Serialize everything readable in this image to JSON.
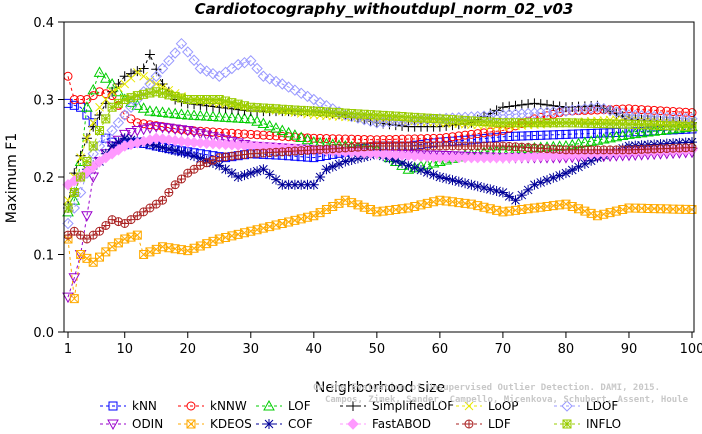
{
  "chart_data": {
    "type": "line",
    "title": "Cardiotocography_withoutdupl_norm_02_v03",
    "xlabel": "Neighborhood size",
    "ylabel": "Maximum F1",
    "xlim": [
      1,
      100
    ],
    "ylim": [
      0.0,
      0.4
    ],
    "xticks": [
      1,
      10,
      20,
      30,
      40,
      50,
      60,
      70,
      80,
      90,
      100
    ],
    "yticks": [
      0.0,
      0.1,
      0.2,
      0.3,
      0.4
    ],
    "ytick_labels": [
      "0.0",
      "0.1",
      "0.2",
      "0.3",
      "0.4"
    ],
    "grid": false,
    "legend_position": "bottom",
    "watermark": [
      "Campos, Zimek, Sander, Campello, Micenkova, Schubert, Assent, Houle",
      "On the Evaluation of Unsupervised Outlier Detection. DAMI, 2015."
    ],
    "series": [
      {
        "name": "kNN",
        "color": "#0000ff",
        "marker": "square",
        "keypoints": [
          [
            1,
            0.295
          ],
          [
            3,
            0.29
          ],
          [
            5,
            0.27
          ],
          [
            7,
            0.25
          ],
          [
            9,
            0.24
          ],
          [
            12,
            0.245
          ],
          [
            15,
            0.24
          ],
          [
            18,
            0.235
          ],
          [
            22,
            0.23
          ],
          [
            26,
            0.225
          ],
          [
            30,
            0.23
          ],
          [
            35,
            0.228
          ],
          [
            40,
            0.225
          ],
          [
            45,
            0.232
          ],
          [
            50,
            0.24
          ],
          [
            55,
            0.24
          ],
          [
            60,
            0.245
          ],
          [
            65,
            0.248
          ],
          [
            70,
            0.252
          ],
          [
            80,
            0.255
          ],
          [
            90,
            0.258
          ],
          [
            100,
            0.262
          ]
        ]
      },
      {
        "name": "kNNW",
        "color": "#ff0000",
        "marker": "circle",
        "keypoints": [
          [
            1,
            0.33
          ],
          [
            2,
            0.3
          ],
          [
            4,
            0.3
          ],
          [
            6,
            0.31
          ],
          [
            8,
            0.305
          ],
          [
            10,
            0.28
          ],
          [
            12,
            0.27
          ],
          [
            16,
            0.265
          ],
          [
            20,
            0.26
          ],
          [
            30,
            0.255
          ],
          [
            40,
            0.25
          ],
          [
            50,
            0.248
          ],
          [
            60,
            0.25
          ],
          [
            70,
            0.26
          ],
          [
            75,
            0.275
          ],
          [
            80,
            0.285
          ],
          [
            90,
            0.288
          ],
          [
            100,
            0.283
          ]
        ]
      },
      {
        "name": "LOF",
        "color": "#00cc00",
        "marker": "triangle",
        "keypoints": [
          [
            1,
            0.155
          ],
          [
            2,
            0.17
          ],
          [
            3,
            0.22
          ],
          [
            4,
            0.29
          ],
          [
            6,
            0.335
          ],
          [
            8,
            0.32
          ],
          [
            10,
            0.3
          ],
          [
            14,
            0.285
          ],
          [
            20,
            0.28
          ],
          [
            30,
            0.275
          ],
          [
            40,
            0.245
          ],
          [
            50,
            0.235
          ],
          [
            55,
            0.21
          ],
          [
            60,
            0.22
          ],
          [
            65,
            0.23
          ],
          [
            70,
            0.235
          ],
          [
            80,
            0.24
          ],
          [
            90,
            0.255
          ],
          [
            100,
            0.265
          ]
        ]
      },
      {
        "name": "SimplifiedLOF",
        "color": "#000000",
        "marker": "plus",
        "keypoints": [
          [
            1,
            0.165
          ],
          [
            2,
            0.205
          ],
          [
            4,
            0.25
          ],
          [
            6,
            0.28
          ],
          [
            8,
            0.31
          ],
          [
            10,
            0.33
          ],
          [
            13,
            0.34
          ],
          [
            14,
            0.358
          ],
          [
            16,
            0.32
          ],
          [
            18,
            0.3
          ],
          [
            20,
            0.295
          ],
          [
            25,
            0.29
          ],
          [
            30,
            0.285
          ],
          [
            40,
            0.285
          ],
          [
            45,
            0.28
          ],
          [
            50,
            0.27
          ],
          [
            55,
            0.265
          ],
          [
            60,
            0.265
          ],
          [
            65,
            0.27
          ],
          [
            70,
            0.29
          ],
          [
            75,
            0.295
          ],
          [
            80,
            0.29
          ],
          [
            85,
            0.292
          ],
          [
            90,
            0.275
          ],
          [
            100,
            0.27
          ]
        ]
      },
      {
        "name": "LoOP",
        "color": "#e8e800",
        "marker": "x",
        "keypoints": [
          [
            1,
            0.17
          ],
          [
            2,
            0.2
          ],
          [
            4,
            0.25
          ],
          [
            6,
            0.29
          ],
          [
            8,
            0.31
          ],
          [
            10,
            0.32
          ],
          [
            12,
            0.335
          ],
          [
            15,
            0.32
          ],
          [
            20,
            0.3
          ],
          [
            30,
            0.29
          ],
          [
            40,
            0.28
          ],
          [
            50,
            0.275
          ],
          [
            60,
            0.27
          ],
          [
            70,
            0.265
          ],
          [
            80,
            0.27
          ],
          [
            90,
            0.275
          ],
          [
            100,
            0.27
          ]
        ]
      },
      {
        "name": "LDOF",
        "color": "#9999ff",
        "marker": "diamond",
        "keypoints": [
          [
            1,
            0.14
          ],
          [
            3,
            0.18
          ],
          [
            5,
            0.23
          ],
          [
            8,
            0.26
          ],
          [
            12,
            0.3
          ],
          [
            15,
            0.33
          ],
          [
            18,
            0.36
          ],
          [
            19,
            0.372
          ],
          [
            22,
            0.34
          ],
          [
            25,
            0.33
          ],
          [
            28,
            0.345
          ],
          [
            30,
            0.35
          ],
          [
            32,
            0.33
          ],
          [
            35,
            0.32
          ],
          [
            40,
            0.3
          ],
          [
            45,
            0.28
          ],
          [
            50,
            0.27
          ],
          [
            60,
            0.275
          ],
          [
            70,
            0.28
          ],
          [
            80,
            0.285
          ],
          [
            85,
            0.29
          ],
          [
            90,
            0.28
          ],
          [
            100,
            0.275
          ]
        ]
      },
      {
        "name": "ODIN",
        "color": "#9900cc",
        "marker": "triangle-down",
        "keypoints": [
          [
            1,
            0.045
          ],
          [
            2,
            0.07
          ],
          [
            3,
            0.1
          ],
          [
            4,
            0.15
          ],
          [
            5,
            0.2
          ],
          [
            6,
            0.22
          ],
          [
            8,
            0.24
          ],
          [
            10,
            0.255
          ],
          [
            12,
            0.26
          ],
          [
            15,
            0.265
          ],
          [
            20,
            0.26
          ],
          [
            30,
            0.24
          ],
          [
            40,
            0.235
          ],
          [
            50,
            0.23
          ],
          [
            60,
            0.228
          ],
          [
            70,
            0.225
          ],
          [
            80,
            0.225
          ],
          [
            90,
            0.228
          ],
          [
            100,
            0.232
          ]
        ]
      },
      {
        "name": "KDEOS",
        "color": "#ffaa00",
        "marker": "square-x",
        "keypoints": [
          [
            1,
            0.12
          ],
          [
            2,
            0.043
          ],
          [
            3,
            0.1
          ],
          [
            5,
            0.09
          ],
          [
            8,
            0.11
          ],
          [
            10,
            0.12
          ],
          [
            12,
            0.125
          ],
          [
            13,
            0.1
          ],
          [
            16,
            0.11
          ],
          [
            20,
            0.105
          ],
          [
            25,
            0.12
          ],
          [
            30,
            0.13
          ],
          [
            35,
            0.14
          ],
          [
            40,
            0.15
          ],
          [
            45,
            0.17
          ],
          [
            50,
            0.155
          ],
          [
            55,
            0.16
          ],
          [
            60,
            0.17
          ],
          [
            65,
            0.165
          ],
          [
            70,
            0.155
          ],
          [
            80,
            0.165
          ],
          [
            85,
            0.15
          ],
          [
            90,
            0.16
          ],
          [
            100,
            0.158
          ]
        ]
      },
      {
        "name": "COF",
        "color": "#000099",
        "marker": "asterisk",
        "keypoints": [
          [
            1,
            0.16
          ],
          [
            2,
            0.18
          ],
          [
            3,
            0.2
          ],
          [
            4,
            0.21
          ],
          [
            6,
            0.22
          ],
          [
            8,
            0.24
          ],
          [
            10,
            0.25
          ],
          [
            15,
            0.24
          ],
          [
            20,
            0.23
          ],
          [
            25,
            0.215
          ],
          [
            28,
            0.2
          ],
          [
            32,
            0.21
          ],
          [
            35,
            0.19
          ],
          [
            40,
            0.19
          ],
          [
            42,
            0.21
          ],
          [
            45,
            0.22
          ],
          [
            50,
            0.23
          ],
          [
            55,
            0.215
          ],
          [
            60,
            0.2
          ],
          [
            65,
            0.19
          ],
          [
            70,
            0.18
          ],
          [
            72,
            0.17
          ],
          [
            75,
            0.19
          ],
          [
            80,
            0.205
          ],
          [
            85,
            0.225
          ],
          [
            90,
            0.24
          ],
          [
            100,
            0.245
          ]
        ]
      },
      {
        "name": "FastABOD",
        "color": "#ff99ff",
        "marker": "diamond-filled",
        "keypoints": [
          [
            1,
            0.19
          ],
          [
            3,
            0.2
          ],
          [
            6,
            0.22
          ],
          [
            10,
            0.24
          ],
          [
            15,
            0.25
          ],
          [
            20,
            0.245
          ],
          [
            30,
            0.24
          ],
          [
            40,
            0.235
          ],
          [
            50,
            0.23
          ],
          [
            60,
            0.225
          ],
          [
            70,
            0.225
          ],
          [
            80,
            0.228
          ],
          [
            90,
            0.232
          ],
          [
            100,
            0.235
          ]
        ]
      },
      {
        "name": "LDF",
        "color": "#aa2222",
        "marker": "circle-plus",
        "keypoints": [
          [
            1,
            0.125
          ],
          [
            2,
            0.13
          ],
          [
            4,
            0.12
          ],
          [
            6,
            0.13
          ],
          [
            8,
            0.145
          ],
          [
            10,
            0.14
          ],
          [
            12,
            0.15
          ],
          [
            14,
            0.16
          ],
          [
            16,
            0.17
          ],
          [
            18,
            0.19
          ],
          [
            20,
            0.205
          ],
          [
            22,
            0.215
          ],
          [
            25,
            0.225
          ],
          [
            30,
            0.23
          ],
          [
            40,
            0.235
          ],
          [
            50,
            0.24
          ],
          [
            60,
            0.24
          ],
          [
            70,
            0.24
          ],
          [
            80,
            0.235
          ],
          [
            90,
            0.235
          ],
          [
            100,
            0.238
          ]
        ]
      },
      {
        "name": "INFLO",
        "color": "#99cc00",
        "marker": "square-star",
        "keypoints": [
          [
            1,
            0.16
          ],
          [
            2,
            0.18
          ],
          [
            4,
            0.22
          ],
          [
            6,
            0.26
          ],
          [
            8,
            0.29
          ],
          [
            10,
            0.3
          ],
          [
            12,
            0.305
          ],
          [
            15,
            0.31
          ],
          [
            20,
            0.3
          ],
          [
            25,
            0.3
          ],
          [
            30,
            0.29
          ],
          [
            40,
            0.285
          ],
          [
            50,
            0.28
          ],
          [
            60,
            0.275
          ],
          [
            70,
            0.27
          ],
          [
            80,
            0.27
          ],
          [
            90,
            0.268
          ],
          [
            100,
            0.265
          ]
        ]
      }
    ]
  }
}
